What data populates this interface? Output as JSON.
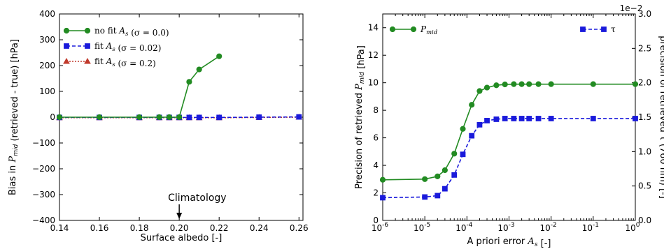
{
  "chart_data": [
    {
      "type": "line",
      "xlabel": "Surface albedo [-]",
      "ylabel": "Bias in P_mid (retrieved - true) [hPa]",
      "xlim": [
        0.14,
        0.262
      ],
      "ylim": [
        -400,
        400
      ],
      "xticks": [
        "0.14",
        "0.16",
        "0.18",
        "0.20",
        "0.22",
        "0.24",
        "0.26"
      ],
      "yticks": [
        "−400",
        "−300",
        "−200",
        "−100",
        "0",
        "100",
        "200",
        "300",
        "400"
      ],
      "grid": false,
      "legend_position": "top-left",
      "annotation": {
        "text": "Climatology",
        "x": 0.2
      },
      "series": [
        {
          "name": "no fit A_s (σ = 0.0)",
          "color": "#228B22",
          "marker": "circle",
          "linestyle": "solid",
          "x": [
            0.14,
            0.16,
            0.18,
            0.19,
            0.195,
            0.2,
            0.205,
            0.21,
            0.22
          ],
          "y": [
            0,
            0,
            0,
            0,
            0,
            0,
            137,
            185,
            236
          ]
        },
        {
          "name": "fit A_s (σ = 0.02)",
          "color": "#1a1adb",
          "marker": "square",
          "linestyle": "dashed",
          "x": [
            0.14,
            0.16,
            0.18,
            0.19,
            0.195,
            0.2,
            0.205,
            0.21,
            0.22,
            0.24,
            0.26
          ],
          "y": [
            -1,
            -1,
            -1,
            -1,
            -1,
            -1,
            -1,
            -1,
            -1,
            0,
            1
          ]
        },
        {
          "name": "fit A_s (σ = 0.2)",
          "color": "#c0392b",
          "marker": "triangle",
          "linestyle": "dotted",
          "x": [
            0.14,
            0.16,
            0.18,
            0.19,
            0.195,
            0.2,
            0.205,
            0.21,
            0.22,
            0.24,
            0.26
          ],
          "y": [
            -2,
            -2,
            -2,
            -2,
            -2,
            -2,
            -2,
            -2,
            -2,
            -1,
            0
          ]
        }
      ]
    },
    {
      "type": "line",
      "xlabel": "A priori error A_s [-]",
      "ylabel": "Precision of retrieved P_mid [hPa]",
      "ylabel_right": "precision of retrieved τ (760 nm) [-]",
      "xscale": "log",
      "xlim": [
        1e-06,
        1
      ],
      "ylim": [
        0,
        15
      ],
      "ylim_right": [
        0,
        0.03
      ],
      "right_offset": "1e−2",
      "xticks_exp": [
        "-6",
        "-5",
        "-4",
        "-3",
        "-2",
        "-1",
        "0"
      ],
      "yticks": [
        "0",
        "2",
        "4",
        "6",
        "8",
        "10",
        "12",
        "14"
      ],
      "yticks_right": [
        "0.0",
        "0.5",
        "1.0",
        "1.5",
        "2.0",
        "2.5",
        "3.0"
      ],
      "grid": false,
      "series": [
        {
          "name": "P_mid",
          "axis": "left",
          "color": "#228B22",
          "marker": "circle",
          "linestyle": "solid",
          "legend_position": "top-left",
          "x": [
            1e-06,
            1e-05,
            2e-05,
            3e-05,
            5e-05,
            8e-05,
            0.00013,
            0.0002,
            0.0003,
            0.0005,
            0.0008,
            0.0013,
            0.002,
            0.003,
            0.005,
            0.01,
            0.1,
            1
          ],
          "y": [
            2.95,
            3.0,
            3.2,
            3.65,
            4.85,
            6.65,
            8.4,
            9.4,
            9.65,
            9.82,
            9.88,
            9.9,
            9.9,
            9.9,
            9.9,
            9.9,
            9.9,
            9.9
          ]
        },
        {
          "name": "τ",
          "axis": "right",
          "color": "#1a1adb",
          "marker": "square",
          "linestyle": "dashed",
          "legend_position": "top-right",
          "x": [
            1e-06,
            1e-05,
            2e-05,
            3e-05,
            5e-05,
            8e-05,
            0.00013,
            0.0002,
            0.0003,
            0.0005,
            0.0008,
            0.0013,
            0.002,
            0.003,
            0.005,
            0.01,
            0.1,
            1
          ],
          "y": [
            0.0033,
            0.0034,
            0.0036,
            0.0046,
            0.0066,
            0.0096,
            0.0123,
            0.0139,
            0.0145,
            0.0147,
            0.0148,
            0.0148,
            0.0148,
            0.0148,
            0.0148,
            0.0148,
            0.0148,
            0.0148
          ]
        }
      ]
    }
  ]
}
